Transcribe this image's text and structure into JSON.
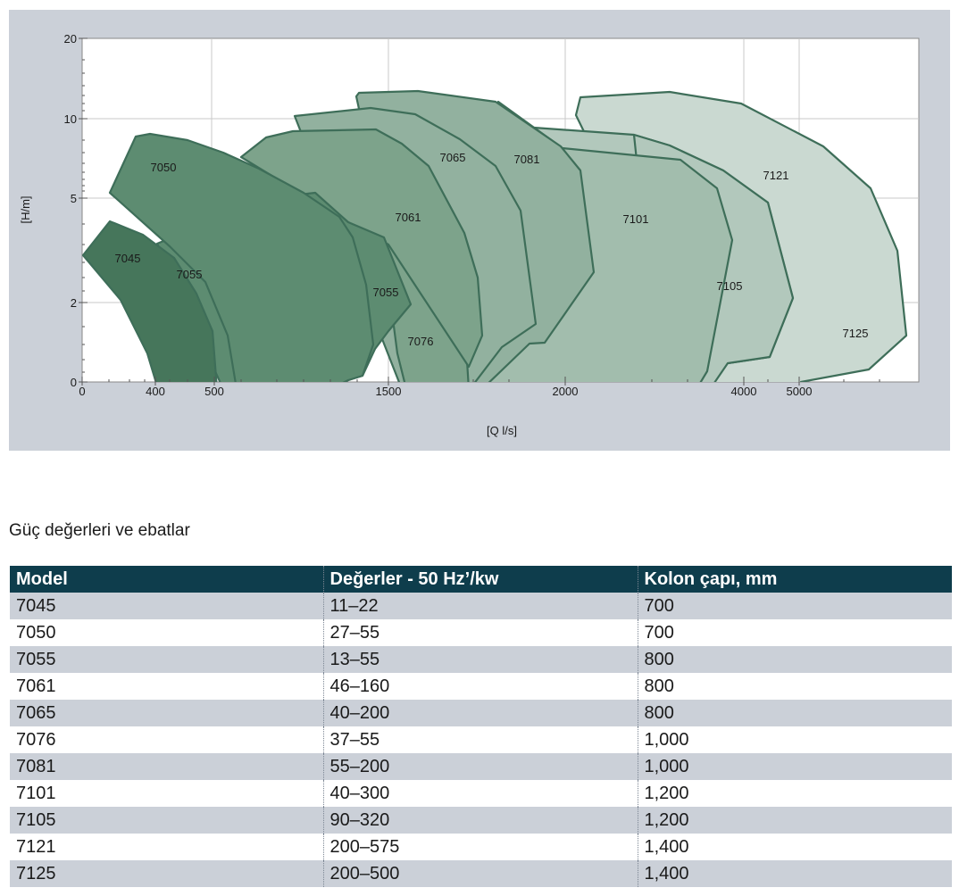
{
  "chart_data": {
    "type": "area",
    "xlabel": "[Q l/s]",
    "ylabel": "[H/m]",
    "x_scale": "log",
    "y_scale": "log",
    "x_ticks": [
      "0",
      "400",
      "500",
      "1500",
      "2000",
      "4000",
      "5000"
    ],
    "y_ticks": [
      "0",
      "2",
      "5",
      "10",
      "20"
    ],
    "grid": true,
    "regions": [
      {
        "model": "7125",
        "color": "#cad9d1"
      },
      {
        "model": "7121",
        "color": "#b2c8bc"
      },
      {
        "model": "7105",
        "color": "#b2c8bc"
      },
      {
        "model": "7101",
        "color": "#a2bdad"
      },
      {
        "model": "7081",
        "color": "#92b19f"
      },
      {
        "model": "7065",
        "color": "#92b19f"
      },
      {
        "model": "7076",
        "color": "#7da38b"
      },
      {
        "model": "7061",
        "color": "#7da38b"
      },
      {
        "model": "7055",
        "color": "#5d8c71"
      },
      {
        "model": "7050",
        "color": "#5d8c71"
      },
      {
        "model": "7045",
        "color": "#46765b"
      }
    ],
    "outline_color": "#3e6e59"
  },
  "section_title": "Güç değerleri ve ebatlar",
  "table": {
    "headers": [
      "Model",
      "Değerler -  50 Hz’/kw",
      "Kolon çapı, mm"
    ],
    "rows": [
      [
        "7045",
        "11–22",
        "700"
      ],
      [
        "7050",
        "27–55",
        "700"
      ],
      [
        "7055",
        "13–55",
        "800"
      ],
      [
        "7061",
        "46–160",
        "800"
      ],
      [
        "7065",
        "40–200",
        "800"
      ],
      [
        "7076",
        "37–55",
        "1,000"
      ],
      [
        "7081",
        "55–200",
        "1,000"
      ],
      [
        "7101",
        "40–300",
        "1,200"
      ],
      [
        "7105",
        "90–320",
        "1,200"
      ],
      [
        "7121",
        "200–575",
        "1,400"
      ],
      [
        "7125",
        "200–500",
        "1,400"
      ]
    ]
  }
}
